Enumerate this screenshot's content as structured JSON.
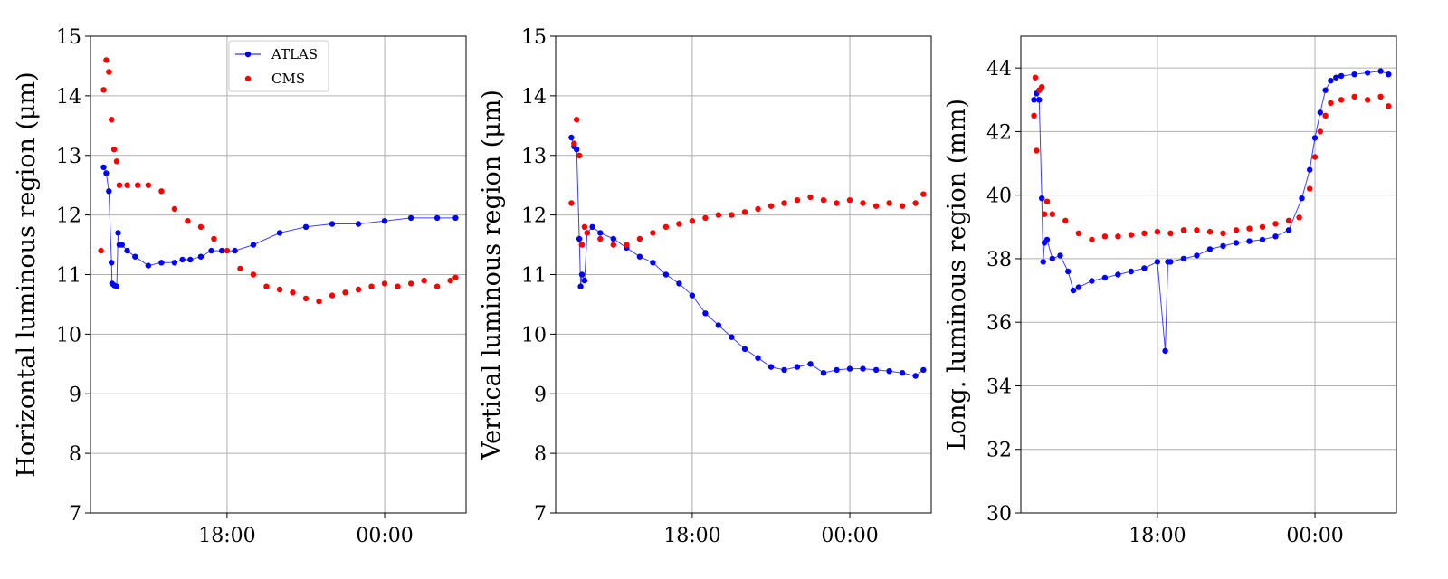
{
  "legend": {
    "entries": [
      {
        "label": "ATLAS",
        "color": "#0000ff",
        "marker": "dot-line"
      },
      {
        "label": "CMS",
        "color": "#ff0000",
        "marker": "dot"
      }
    ],
    "placement": "upper-center"
  },
  "colors": {
    "atlas": "#0000ff",
    "cms": "#ff0000",
    "grid": "#b0b0b0"
  },
  "chart_data": [
    {
      "type": "scatter",
      "ylabel": "Horizontal luminous region (μm)",
      "xlabel": "",
      "x_ticks": [
        "18:00",
        "00:00"
      ],
      "x_unit": "hours",
      "xlim": [
        12.8,
        27.1
      ],
      "x_tick_values": [
        18,
        24
      ],
      "ylim": [
        7,
        15
      ],
      "y_ticks": [
        "7",
        "8",
        "9",
        "10",
        "11",
        "12",
        "13",
        "14",
        "15"
      ],
      "grid": true,
      "series": [
        {
          "name": "ATLAS",
          "style": "line+dots",
          "x": [
            13.3,
            13.4,
            13.5,
            13.6,
            13.62,
            13.7,
            13.8,
            13.85,
            13.9,
            14.0,
            14.2,
            14.5,
            15.0,
            15.5,
            16.0,
            16.3,
            16.6,
            17.0,
            17.4,
            17.8,
            18.3,
            19.0,
            20.0,
            21.0,
            22.0,
            23.0,
            24.0,
            25.0,
            26.0,
            26.7
          ],
          "y": [
            12.8,
            12.7,
            12.4,
            11.2,
            10.85,
            10.82,
            10.8,
            11.7,
            11.5,
            11.5,
            11.4,
            11.3,
            11.15,
            11.2,
            11.2,
            11.25,
            11.25,
            11.3,
            11.4,
            11.4,
            11.4,
            11.5,
            11.7,
            11.8,
            11.85,
            11.85,
            11.9,
            11.95,
            11.95,
            11.95
          ]
        },
        {
          "name": "CMS",
          "style": "dots",
          "x": [
            13.2,
            13.3,
            13.4,
            13.5,
            13.6,
            13.7,
            13.8,
            13.9,
            14.2,
            14.6,
            15.0,
            15.5,
            16.0,
            16.5,
            17.0,
            17.5,
            18.0,
            18.5,
            19.0,
            19.5,
            20.0,
            20.5,
            21.0,
            21.5,
            22.0,
            22.5,
            23.0,
            23.5,
            24.0,
            24.5,
            25.0,
            25.5,
            26.0,
            26.5,
            26.7
          ],
          "y": [
            11.4,
            14.1,
            14.6,
            14.4,
            13.6,
            13.1,
            12.9,
            12.5,
            12.5,
            12.5,
            12.5,
            12.4,
            12.1,
            11.9,
            11.8,
            11.6,
            11.4,
            11.1,
            11.0,
            10.8,
            10.75,
            10.7,
            10.6,
            10.55,
            10.65,
            10.7,
            10.75,
            10.8,
            10.85,
            10.8,
            10.85,
            10.9,
            10.8,
            10.9,
            10.95
          ]
        }
      ]
    },
    {
      "type": "scatter",
      "ylabel": "Vertical luminous region (μm)",
      "xlabel": "",
      "x_ticks": [
        "18:00",
        "00:00"
      ],
      "x_unit": "hours",
      "xlim": [
        12.8,
        27.1
      ],
      "x_tick_values": [
        18,
        24
      ],
      "ylim": [
        7,
        15
      ],
      "y_ticks": [
        "7",
        "8",
        "9",
        "10",
        "11",
        "12",
        "13",
        "14",
        "15"
      ],
      "grid": true,
      "series": [
        {
          "name": "ATLAS",
          "style": "line+dots",
          "x": [
            13.4,
            13.5,
            13.6,
            13.7,
            13.75,
            13.8,
            13.9,
            14.0,
            14.2,
            14.5,
            15.0,
            15.5,
            16.0,
            16.5,
            17.0,
            17.5,
            18.0,
            18.5,
            19.0,
            19.5,
            20.0,
            20.5,
            21.0,
            21.5,
            22.0,
            22.5,
            23.0,
            23.5,
            24.0,
            24.5,
            25.0,
            25.5,
            26.0,
            26.5,
            26.8
          ],
          "y": [
            13.3,
            13.15,
            13.1,
            11.6,
            10.8,
            11.0,
            10.9,
            11.7,
            11.8,
            11.7,
            11.6,
            11.45,
            11.3,
            11.2,
            11.0,
            10.85,
            10.65,
            10.35,
            10.15,
            9.95,
            9.75,
            9.6,
            9.45,
            9.4,
            9.45,
            9.5,
            9.35,
            9.4,
            9.42,
            9.42,
            9.4,
            9.38,
            9.35,
            9.3,
            9.4
          ]
        },
        {
          "name": "CMS",
          "style": "dots",
          "x": [
            13.4,
            13.5,
            13.6,
            13.7,
            13.8,
            13.9,
            14.0,
            14.5,
            15.0,
            15.5,
            16.0,
            16.5,
            17.0,
            17.5,
            18.0,
            18.5,
            19.0,
            19.5,
            20.0,
            20.5,
            21.0,
            21.5,
            22.0,
            22.5,
            23.0,
            23.5,
            24.0,
            24.5,
            25.0,
            25.5,
            26.0,
            26.5,
            26.8
          ],
          "y": [
            12.2,
            13.2,
            13.6,
            13.0,
            11.5,
            11.8,
            11.7,
            11.6,
            11.5,
            11.5,
            11.6,
            11.7,
            11.8,
            11.85,
            11.9,
            11.95,
            12.0,
            12.0,
            12.05,
            12.1,
            12.15,
            12.2,
            12.25,
            12.3,
            12.25,
            12.2,
            12.25,
            12.2,
            12.15,
            12.2,
            12.15,
            12.2,
            12.35
          ]
        }
      ]
    },
    {
      "type": "scatter",
      "ylabel": "Long. luminous region (mm)",
      "xlabel": "",
      "x_ticks": [
        "18:00",
        "00:00"
      ],
      "x_unit": "hours",
      "xlim": [
        12.8,
        27.1
      ],
      "x_tick_values": [
        18,
        24
      ],
      "ylim": [
        30,
        45
      ],
      "y_ticks": [
        "30",
        "32",
        "34",
        "36",
        "38",
        "40",
        "42",
        "44"
      ],
      "grid": true,
      "series": [
        {
          "name": "ATLAS",
          "style": "line+dots",
          "x": [
            13.3,
            13.4,
            13.5,
            13.6,
            13.65,
            13.7,
            13.8,
            14.0,
            14.3,
            14.6,
            14.8,
            15.0,
            15.5,
            16.0,
            16.5,
            17.0,
            17.5,
            18.0,
            18.3,
            18.4,
            18.5,
            19.0,
            19.5,
            20.0,
            20.5,
            21.0,
            21.5,
            22.0,
            22.5,
            23.0,
            23.5,
            23.8,
            24.0,
            24.2,
            24.4,
            24.6,
            24.8,
            25.0,
            25.5,
            26.0,
            26.5,
            26.8
          ],
          "y": [
            43.0,
            43.2,
            43.0,
            39.9,
            37.9,
            38.5,
            38.6,
            38.0,
            38.1,
            37.6,
            37.0,
            37.1,
            37.3,
            37.4,
            37.5,
            37.6,
            37.7,
            37.9,
            35.1,
            37.9,
            37.9,
            38.0,
            38.1,
            38.3,
            38.4,
            38.5,
            38.55,
            38.6,
            38.7,
            38.9,
            39.9,
            40.8,
            41.8,
            42.6,
            43.3,
            43.6,
            43.7,
            43.75,
            43.8,
            43.85,
            43.9,
            43.8
          ]
        },
        {
          "name": "CMS",
          "style": "dots",
          "x": [
            13.3,
            13.35,
            13.4,
            13.5,
            13.6,
            13.7,
            13.8,
            14.0,
            14.5,
            15.0,
            15.5,
            16.0,
            16.5,
            17.0,
            17.5,
            18.0,
            18.5,
            19.0,
            19.5,
            20.0,
            20.5,
            21.0,
            21.5,
            22.0,
            22.5,
            23.0,
            23.4,
            23.8,
            24.0,
            24.2,
            24.4,
            24.6,
            25.0,
            25.5,
            26.0,
            26.5,
            26.8
          ],
          "y": [
            42.5,
            43.7,
            41.4,
            43.3,
            43.4,
            39.4,
            39.8,
            39.4,
            39.2,
            38.8,
            38.6,
            38.7,
            38.7,
            38.75,
            38.8,
            38.85,
            38.8,
            38.9,
            38.9,
            38.85,
            38.8,
            38.9,
            38.95,
            39.0,
            39.1,
            39.2,
            39.3,
            40.2,
            41.2,
            42.0,
            42.5,
            42.9,
            43.0,
            43.1,
            43.0,
            43.1,
            42.8
          ]
        }
      ]
    }
  ]
}
